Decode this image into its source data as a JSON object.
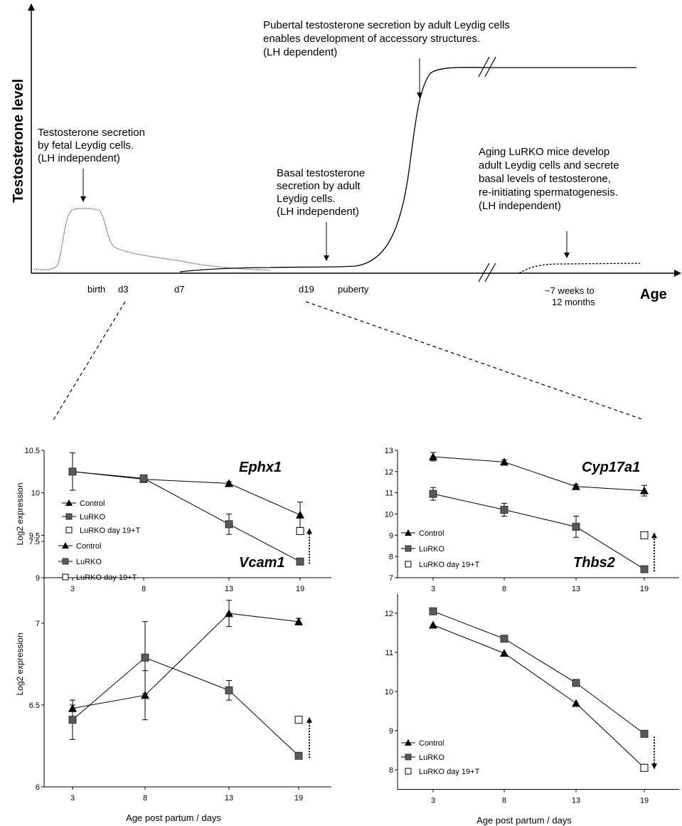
{
  "top_diagram": {
    "y_axis_label": "Testosterone level",
    "x_axis_label": "Age",
    "x_ticks": [
      "birth",
      "d3",
      "d7",
      "d19",
      "puberty",
      "~7 weeks to",
      "12 months"
    ],
    "annotations": {
      "fetal": [
        "Testosterone secretion",
        "by fetal Leydig cells.",
        "(LH independent)"
      ],
      "basal": [
        "Basal testosterone",
        "secretion by adult",
        "Leydig cells.",
        "(LH independent)"
      ],
      "pubertal": [
        "Pubertal testosterone secretion by adult Leydig cells",
        "enables development of accessory structures.",
        "(LH dependent)"
      ],
      "aging": [
        "Aging LuRKO mice develop",
        "adult Leydig cells and secrete",
        "basal levels of testosterone,",
        "re-initiating spermatogenesis.",
        "(LH independent)"
      ]
    }
  },
  "chart_data": [
    {
      "type": "line",
      "title": "Ephx1",
      "ylabel": "Log2 expression",
      "xlabel": "",
      "x": [
        3,
        8,
        13,
        19
      ],
      "ylim": [
        9,
        10.5
      ],
      "yticks": [
        "9",
        "9.5",
        "10",
        "10.5"
      ],
      "series": [
        {
          "name": "Control",
          "marker": "triangle",
          "values": [
            10.25,
            10.16,
            10.11,
            9.74
          ],
          "errors": [
            0.0,
            0.0,
            0.02,
            0.15
          ]
        },
        {
          "name": "LuRKO",
          "marker": "square",
          "values": [
            10.25,
            10.17,
            9.63,
            9.19
          ],
          "errors": [
            0.22,
            0.03,
            0.12,
            0.02
          ]
        },
        {
          "name": "LuRKO day 19+T",
          "marker": "open-square",
          "values": [
            null,
            null,
            null,
            9.55
          ],
          "errors": [
            0,
            0,
            0,
            0
          ]
        }
      ],
      "legend": "left",
      "arrow_direction": "up"
    },
    {
      "type": "line",
      "title": "Cyp17a1",
      "ylabel": "",
      "xlabel": "",
      "x": [
        3,
        8,
        13,
        19
      ],
      "ylim": [
        7,
        13
      ],
      "yticks": [
        "7",
        "8",
        "9",
        "10",
        "11",
        "12",
        "13"
      ],
      "series": [
        {
          "name": "Control",
          "marker": "triangle",
          "values": [
            12.7,
            12.45,
            11.3,
            11.1
          ],
          "errors": [
            0.2,
            0.1,
            0.1,
            0.25
          ]
        },
        {
          "name": "LuRKO",
          "marker": "square",
          "values": [
            10.95,
            10.2,
            9.4,
            7.4
          ],
          "errors": [
            0.3,
            0.3,
            0.5,
            0.08
          ]
        },
        {
          "name": "LuRKO day 19+T",
          "marker": "open-square",
          "values": [
            null,
            null,
            null,
            9.0
          ],
          "errors": [
            0,
            0,
            0,
            0
          ]
        }
      ],
      "legend": "left",
      "arrow_direction": "up"
    },
    {
      "type": "line",
      "title": "Vcam1",
      "ylabel": "Log2 expression",
      "xlabel": "Age post partum / days",
      "x": [
        3,
        8,
        13,
        19
      ],
      "ylim": [
        6,
        7.5
      ],
      "yticks": [
        "6",
        "6.5",
        "7",
        "7.5"
      ],
      "series": [
        {
          "name": "Control",
          "marker": "triangle",
          "values": [
            6.48,
            6.56,
            7.06,
            7.01
          ],
          "errors": [
            0.02,
            0.15,
            0.08,
            0.02
          ]
        },
        {
          "name": "LuRKO",
          "marker": "square",
          "values": [
            6.41,
            6.79,
            6.59,
            6.19
          ],
          "errors": [
            0.12,
            0.22,
            0.06,
            0.02
          ]
        },
        {
          "name": "LuRKO day 19+T",
          "marker": "open-square",
          "values": [
            null,
            null,
            null,
            6.41
          ],
          "errors": [
            0,
            0,
            0,
            0
          ]
        }
      ],
      "legend": "top-left",
      "arrow_direction": "up"
    },
    {
      "type": "line",
      "title": "Thbs2",
      "ylabel": "",
      "xlabel": "Age post partum / days",
      "x": [
        3,
        8,
        13,
        19
      ],
      "ylim": [
        7.5,
        12.5
      ],
      "yticks": [
        "8",
        "9",
        "10",
        "11",
        "12"
      ],
      "series": [
        {
          "name": "Control",
          "marker": "triangle",
          "values": [
            11.7,
            10.98,
            9.7,
            8.05
          ],
          "errors": [
            0,
            0,
            0,
            0
          ]
        },
        {
          "name": "LuRKO",
          "marker": "square",
          "values": [
            12.05,
            11.35,
            10.22,
            8.92
          ],
          "errors": [
            0,
            0,
            0,
            0
          ]
        },
        {
          "name": "LuRKO day 19+T",
          "marker": "open-square",
          "values": [
            null,
            null,
            null,
            8.05
          ],
          "errors": [
            0,
            0,
            0,
            0
          ]
        }
      ],
      "legend": "bottom-left",
      "arrow_direction": "down"
    }
  ]
}
